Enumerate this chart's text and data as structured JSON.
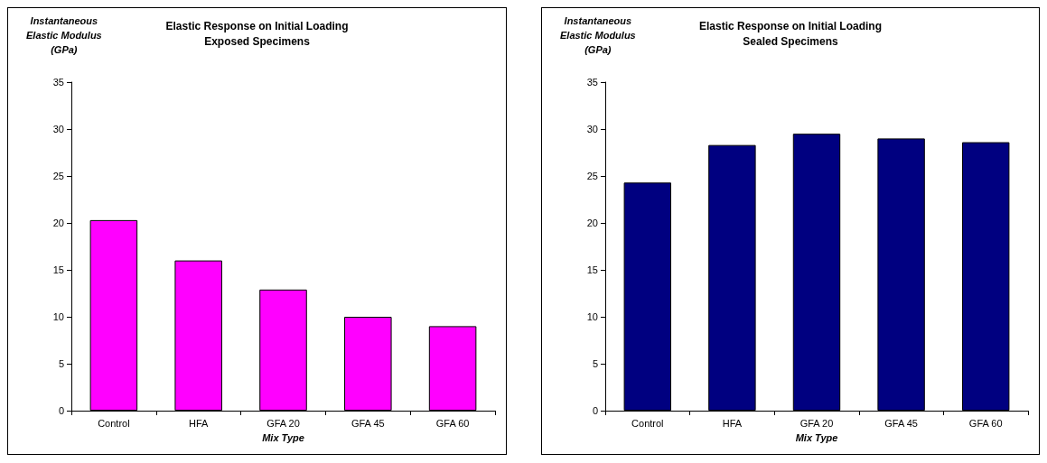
{
  "chart_data": [
    {
      "type": "bar",
      "title": "Elastic Response on Initial Loading\nExposed Specimens",
      "xlabel": "Mix Type",
      "ylabel": "Instantaneous\nElastic Modulus\n(GPa)",
      "categories": [
        "Control",
        "HFA",
        "GFA 20",
        "GFA 45",
        "GFA 60"
      ],
      "values": [
        20.3,
        16.0,
        12.9,
        10.0,
        9.0
      ],
      "color": "#ff00ff",
      "ylim": [
        0,
        35
      ],
      "yticks": [
        0,
        5,
        10,
        15,
        20,
        25,
        30,
        35
      ],
      "grid": false
    },
    {
      "type": "bar",
      "title": "Elastic Response on Initial Loading\nSealed Specimens",
      "xlabel": "Mix Type",
      "ylabel": "Instantaneous\nElastic Modulus\n(GPa)",
      "categories": [
        "Control",
        "HFA",
        "GFA 20",
        "GFA 45",
        "GFA 60"
      ],
      "values": [
        24.3,
        28.3,
        29.5,
        29.0,
        28.6
      ],
      "color": "#000080",
      "ylim": [
        0,
        35
      ],
      "yticks": [
        0,
        5,
        10,
        15,
        20,
        25,
        30,
        35
      ],
      "grid": false
    }
  ]
}
